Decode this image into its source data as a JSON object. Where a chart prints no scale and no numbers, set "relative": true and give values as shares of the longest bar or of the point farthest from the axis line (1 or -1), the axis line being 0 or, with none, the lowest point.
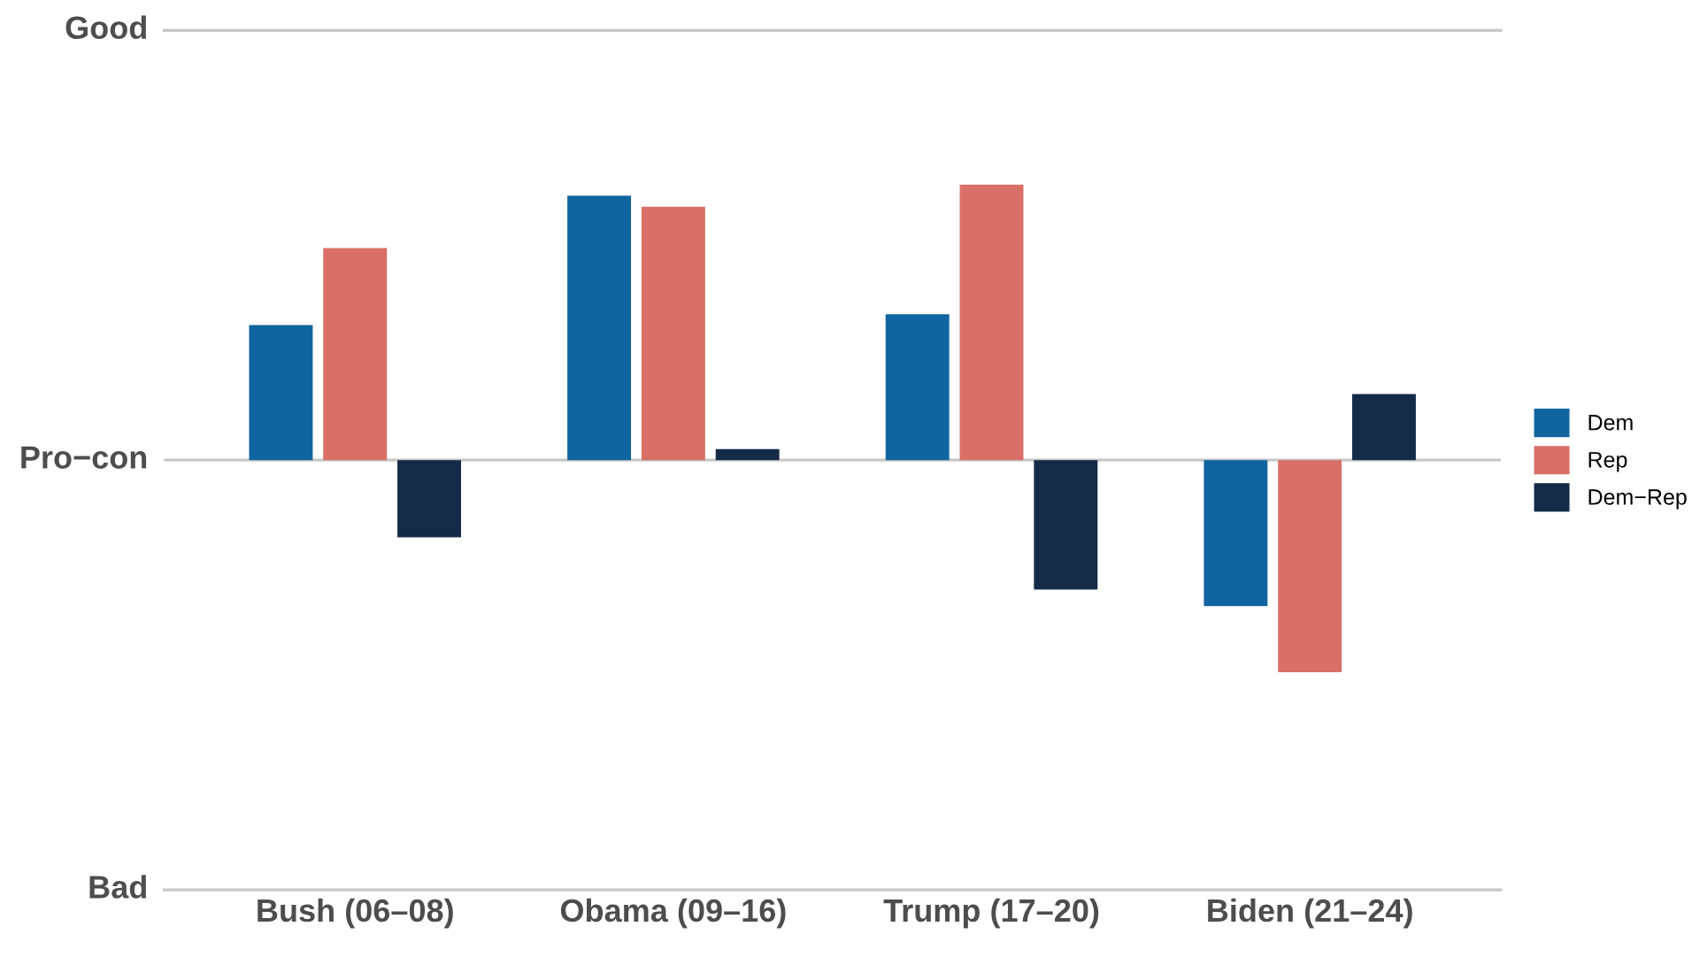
{
  "chart_data": {
    "type": "bar",
    "categories": [
      "Bush (06–08)",
      "Obama (09–16)",
      "Trump (17–20)",
      "Biden (21–24)"
    ],
    "series": [
      {
        "name": "Dem",
        "color": "#1065a0",
        "values": [
          0.49,
          0.96,
          0.53,
          -0.53
        ]
      },
      {
        "name": "Rep",
        "color": "#d96f66",
        "values": [
          0.77,
          0.92,
          1.0,
          -0.77
        ]
      },
      {
        "name": "Dem−Rep",
        "color": "#142b47",
        "values": [
          -0.28,
          0.04,
          -0.47,
          0.24
        ]
      }
    ],
    "relative": true,
    "annotations": [
      "Good",
      "Pro−con",
      "Bad"
    ],
    "legend": "right"
  }
}
